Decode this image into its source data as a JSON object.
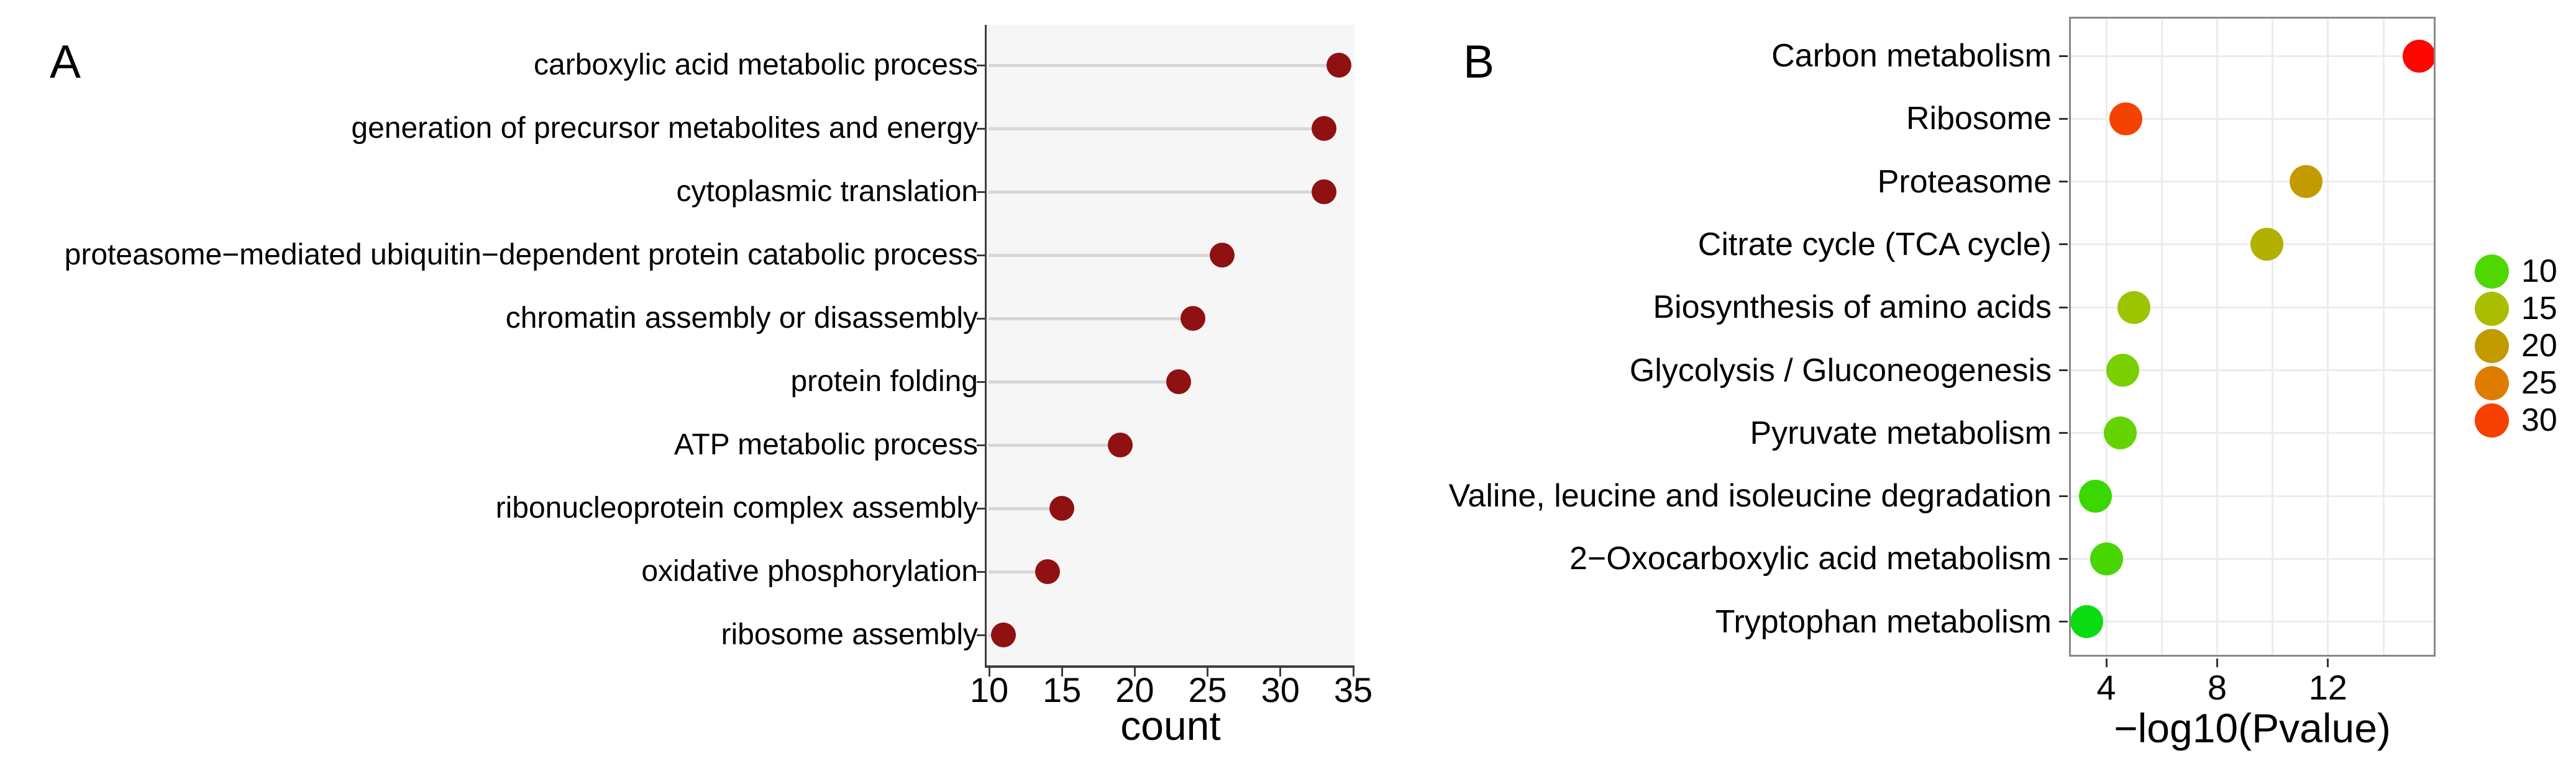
{
  "chart_data": [
    {
      "id": "panel_a",
      "type": "scatter",
      "variant": "lollipop",
      "panel_label": "A",
      "title": "",
      "xlabel": "count",
      "ylabel": "",
      "x_ticks": [
        10,
        15,
        20,
        25,
        30,
        35
      ],
      "xlim": [
        9.8,
        35.2
      ],
      "grid": false,
      "legend_position": "none",
      "categories": [
        "carboxylic acid metabolic process",
        "generation of precursor metabolites and energy",
        "cytoplasmic translation",
        "proteasome−mediated ubiquitin−dependent protein catabolic process",
        "chromatin assembly or disassembly",
        "protein folding",
        "ATP metabolic process",
        "ribonucleoprotein complex assembly",
        "oxidative phosphorylation",
        "ribosome assembly"
      ],
      "values": [
        34,
        33,
        33,
        26,
        24,
        23,
        19,
        15,
        14,
        11
      ],
      "dot_color": "#8f1111",
      "stem_color": "#d7d7d7",
      "panel_bg": "#f6f6f6",
      "axis_color": "#3e3e3e"
    },
    {
      "id": "panel_b",
      "type": "scatter",
      "variant": "dotplot",
      "panel_label": "B",
      "title": "",
      "xlabel": "−log10(Pvalue)",
      "ylabel": "",
      "x_ticks": [
        4,
        8,
        12
      ],
      "x_gridlines": [
        4,
        6,
        8,
        10,
        12,
        14
      ],
      "xlim": [
        2.7,
        15.9
      ],
      "grid": true,
      "legend_position": "right",
      "color_scale_meaning": "gene count (green = low, red = high)",
      "points": [
        {
          "category": "Carbon metabolism",
          "x": 15.3,
          "color": "#fc0800",
          "count_estimate": 32
        },
        {
          "category": "Ribosome",
          "x": 4.7,
          "color": "#f44300",
          "count_estimate": 28
        },
        {
          "category": "Proteasome",
          "x": 11.2,
          "color": "#c39b00",
          "count_estimate": 20
        },
        {
          "category": "Citrate cycle (TCA cycle)",
          "x": 9.8,
          "color": "#b2b000",
          "count_estimate": 18
        },
        {
          "category": "Biosynthesis of amino acids",
          "x": 5.0,
          "color": "#9cc400",
          "count_estimate": 15
        },
        {
          "category": "Glycolysis / Gluconeogenesis",
          "x": 4.6,
          "color": "#79cf00",
          "count_estimate": 13
        },
        {
          "category": "Pyruvate metabolism",
          "x": 4.5,
          "color": "#65d300",
          "count_estimate": 12
        },
        {
          "category": "Valine, leucine and isoleucine degradation",
          "x": 3.6,
          "color": "#3ad800",
          "count_estimate": 10
        },
        {
          "category": "2−Oxocarboxylic acid metabolism",
          "x": 4.0,
          "color": "#48d600",
          "count_estimate": 11
        },
        {
          "category": "Tryptophan metabolism",
          "x": 3.3,
          "color": "#0bdc12",
          "count_estimate": 8
        }
      ],
      "panel_bg": "#ffffff",
      "border_color": "#898989",
      "grid_color": "#ececec",
      "axis_color": "#3e3e3e",
      "legend": {
        "entries": [
          {
            "label": "10",
            "color": "#4fd800"
          },
          {
            "label": "15",
            "color": "#a9be00"
          },
          {
            "label": "20",
            "color": "#c19a00"
          },
          {
            "label": "25",
            "color": "#de7c00"
          },
          {
            "label": "30",
            "color": "#f54000"
          }
        ]
      }
    }
  ]
}
